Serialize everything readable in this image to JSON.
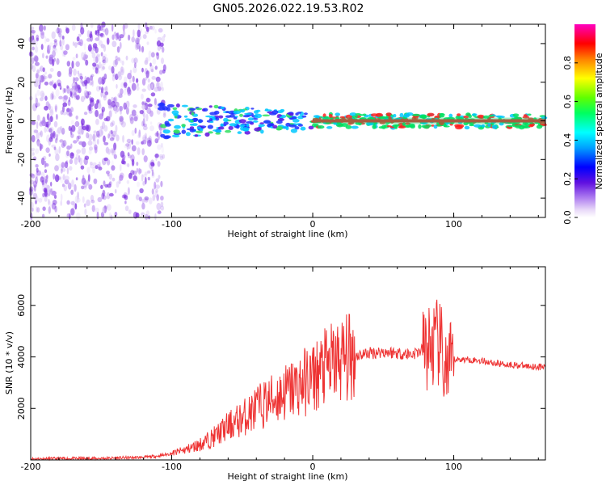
{
  "title": "GN05.2026.022.19.53.R02",
  "chart_data": [
    {
      "type": "heatmap",
      "xlabel": "Height of straight line (km)",
      "ylabel": "Frequency (Hz)",
      "xlim": [
        -200,
        165
      ],
      "ylim": [
        -50,
        50
      ],
      "xticks": [
        -200,
        -100,
        0,
        100
      ],
      "yticks": [
        -40,
        -20,
        0,
        20,
        40
      ],
      "ytick_labels": [
        "-40",
        "-20",
        "0",
        "20",
        "40"
      ],
      "band_center_hz": 0,
      "colorbar": {
        "label": "Normalized spectral amplitude",
        "range": [
          0.0,
          1.0
        ],
        "ticks": [
          0.0,
          0.2,
          0.4,
          0.6,
          0.8
        ],
        "tick_labels": [
          "0.0",
          "0.2",
          "0.4",
          "0.6",
          "0.8"
        ]
      }
    },
    {
      "type": "line",
      "xlabel": "Height of straight line (km)",
      "ylabel": "SNR (10 * v/v)",
      "xlim": [
        -200,
        165
      ],
      "ylim": [
        0,
        7500
      ],
      "xticks": [
        -200,
        -100,
        0,
        100
      ],
      "yticks": [
        2000,
        4000,
        6000
      ],
      "ytick_labels": [
        "2000",
        "4000",
        "6000"
      ],
      "series": [
        {
          "name": "SNR",
          "color": "#ee3333",
          "x": [
            -200,
            -150,
            -120,
            -110,
            -100,
            -90,
            -80,
            -70,
            -60,
            -50,
            -40,
            -30,
            -20,
            -10,
            0,
            10,
            20,
            30,
            40,
            50,
            60,
            70,
            80,
            85,
            90,
            93,
            96,
            100,
            110,
            120,
            130,
            140,
            150,
            165
          ],
          "y": [
            40,
            60,
            100,
            150,
            250,
            400,
            600,
            900,
            1300,
            1600,
            2000,
            2300,
            2600,
            2900,
            3200,
            3600,
            3900,
            4050,
            4150,
            4200,
            4150,
            4100,
            4300,
            4400,
            4500,
            3700,
            3300,
            3900,
            3900,
            3850,
            3750,
            3700,
            3650,
            3600
          ]
        }
      ]
    }
  ]
}
